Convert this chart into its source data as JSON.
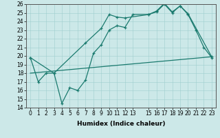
{
  "xlabel": "Humidex (Indice chaleur)",
  "background_color": "#cce8e8",
  "line_color": "#1a7a6e",
  "ylim": [
    14,
    26
  ],
  "xlim": [
    -0.5,
    23.5
  ],
  "yticks": [
    14,
    15,
    16,
    17,
    18,
    19,
    20,
    21,
    22,
    23,
    24,
    25,
    26
  ],
  "xticks": [
    0,
    1,
    2,
    3,
    4,
    5,
    6,
    7,
    8,
    9,
    10,
    11,
    12,
    13,
    15,
    16,
    17,
    18,
    19,
    20,
    21,
    22,
    23
  ],
  "xtick_labels": [
    "0",
    "1",
    "2",
    "3",
    "4",
    "5",
    "6",
    "7",
    "8",
    "9",
    "10",
    "11",
    "12",
    "13",
    "15",
    "16",
    "17",
    "18",
    "19",
    "20",
    "21",
    "22",
    "23"
  ],
  "line1_x": [
    0,
    1,
    2,
    3,
    4,
    5,
    6,
    7,
    8,
    9,
    10,
    11,
    12,
    13,
    15,
    16,
    17,
    18,
    19,
    20,
    21,
    22,
    23
  ],
  "line1_y": [
    19.8,
    17.0,
    18.0,
    18.0,
    14.5,
    16.3,
    16.0,
    17.2,
    20.3,
    21.3,
    23.0,
    23.5,
    23.3,
    24.8,
    24.8,
    25.1,
    26.0,
    25.0,
    25.8,
    24.8,
    23.0,
    21.0,
    19.8
  ],
  "line2_x": [
    0,
    3,
    7,
    9,
    10,
    11,
    12,
    15,
    16,
    17,
    18,
    19,
    20,
    23
  ],
  "line2_y": [
    19.8,
    18.0,
    21.5,
    23.2,
    24.8,
    24.5,
    24.4,
    24.8,
    25.2,
    26.1,
    25.1,
    25.8,
    24.9,
    19.9
  ],
  "line3_x": [
    0,
    23
  ],
  "line3_y": [
    18.0,
    19.9
  ]
}
